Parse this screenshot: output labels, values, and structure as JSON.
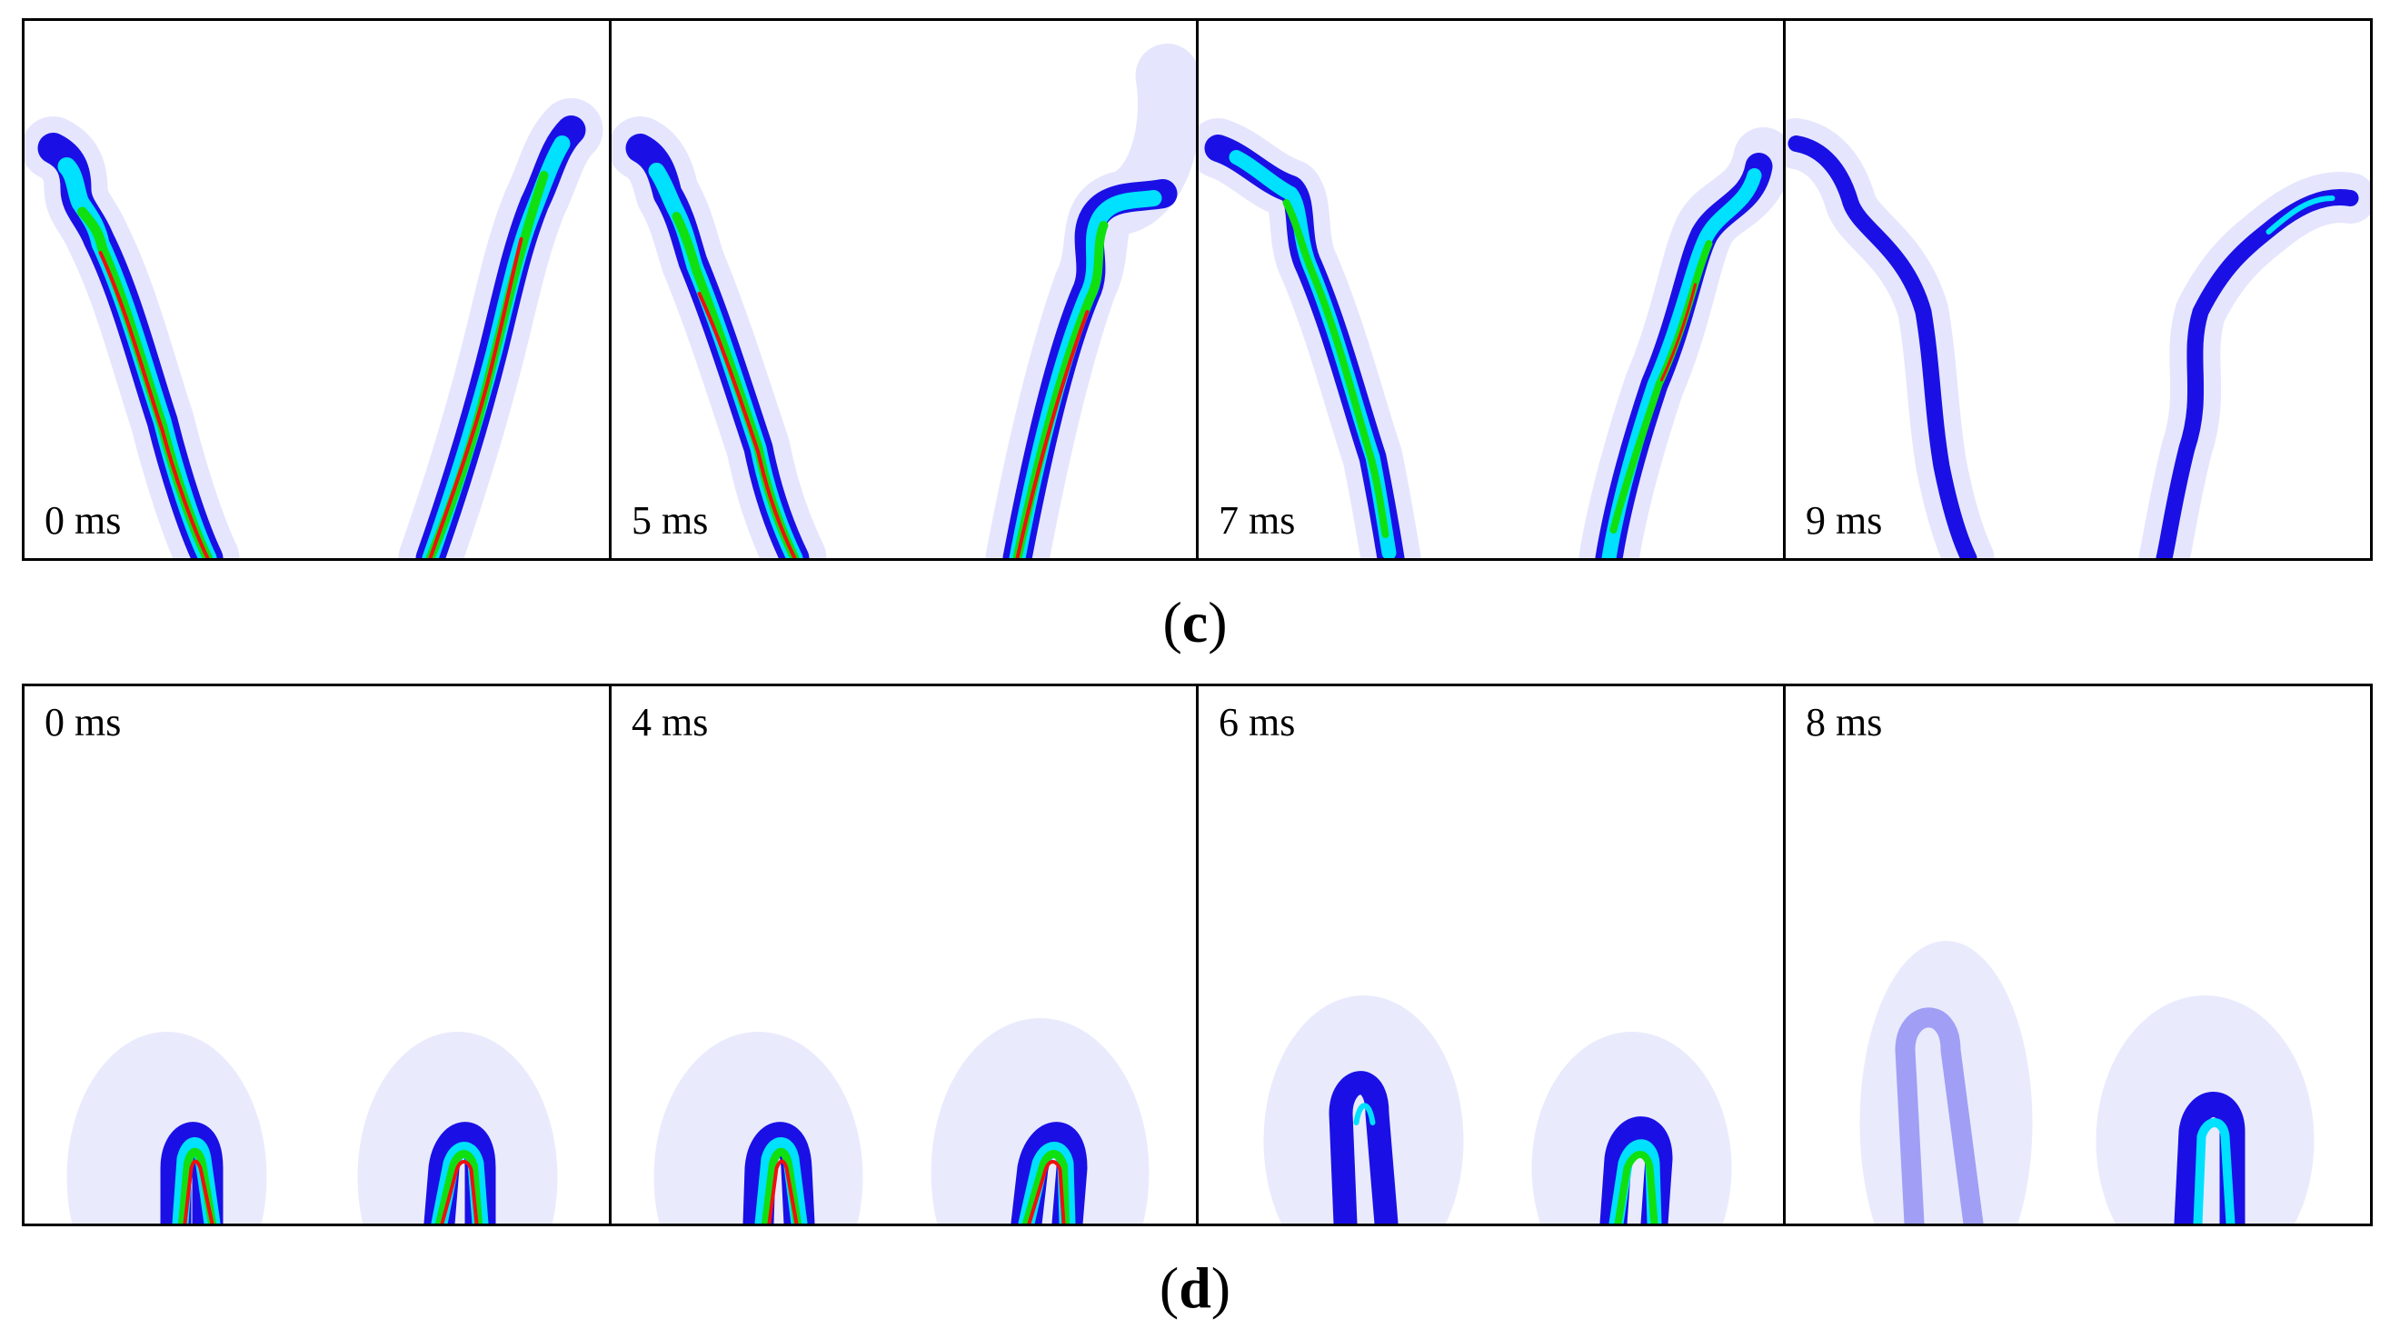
{
  "figure": {
    "rows": [
      {
        "caption_open": "(",
        "caption_letter": "c",
        "caption_close": ")",
        "panels": [
          {
            "time_label": "0 ms"
          },
          {
            "time_label": "5 ms"
          },
          {
            "time_label": "7 ms"
          },
          {
            "time_label": "9 ms"
          }
        ]
      },
      {
        "caption_open": "(",
        "caption_letter": "d",
        "caption_close": ")",
        "panels": [
          {
            "time_label": "0 ms"
          },
          {
            "time_label": "4 ms"
          },
          {
            "time_label": "6 ms"
          },
          {
            "time_label": "8 ms"
          }
        ]
      }
    ],
    "colormap": {
      "halo": "#cfd2fb",
      "outer": "#1a10e6",
      "mid": "#00e0ff",
      "inner": "#10e010",
      "core": "#f01010"
    }
  }
}
